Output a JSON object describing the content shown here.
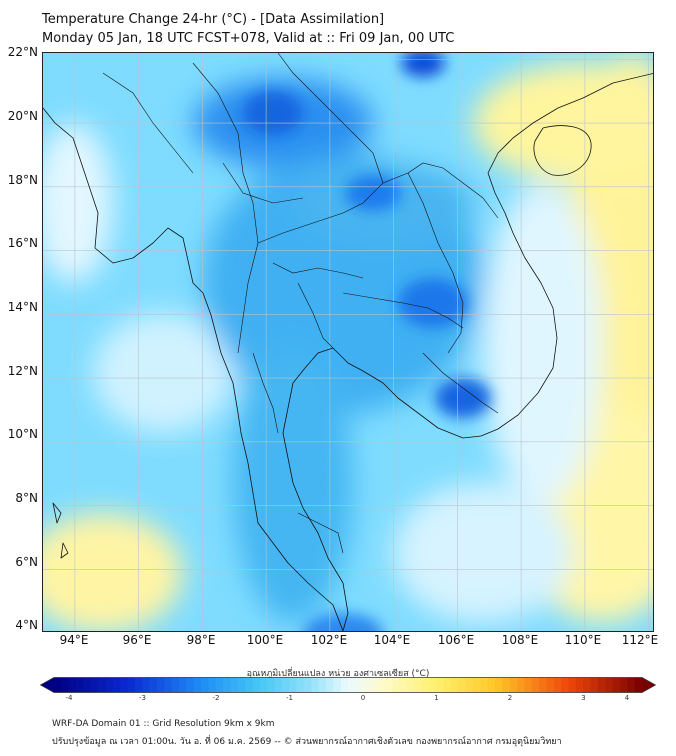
{
  "header": {
    "title_line1": "Temperature Change 24-hr (°C) - [Data Assimilation]",
    "title_line2": "Monday 05 Jan, 18 UTC FCST+078, Valid at :: Fri 09 Jan, 00 UTC"
  },
  "map": {
    "lat_labels": [
      "22°N",
      "20°N",
      "18°N",
      "16°N",
      "14°N",
      "12°N",
      "10°N",
      "8°N",
      "6°N",
      "4°N"
    ],
    "lat_values": [
      22,
      20,
      18,
      16,
      14,
      12,
      10,
      8,
      6,
      4
    ],
    "lon_labels": [
      "94°E",
      "96°E",
      "98°E",
      "100°E",
      "102°E",
      "104°E",
      "106°E",
      "108°E",
      "110°E",
      "112°E"
    ],
    "lon_values": [
      94,
      96,
      98,
      100,
      102,
      104,
      106,
      108,
      110,
      112
    ],
    "lon_range": [
      93,
      112.2
    ],
    "lat_range": [
      4,
      22.2
    ]
  },
  "colorbar": {
    "title": "อุณหภูมิเปลี่ยนแปลง หน่วย องศาเซลเซียส (°C)",
    "tick_labels": [
      "-4",
      "-3",
      "-2",
      "-1",
      "0",
      "1",
      "2",
      "3",
      "4"
    ],
    "tick_values": [
      -4,
      -3,
      -2,
      -1,
      0,
      1,
      2,
      3,
      4
    ],
    "range": [
      -4,
      4
    ]
  },
  "footer": {
    "line1": "WRF-DA Domain 01 :: Grid Resolution 9km x 9km",
    "line2": "ปรับปรุงข้อมูล ณ เวลา 01:00น. วัน อ. ที่ 06 ม.ค. 2569 -- © ส่วนพยากรณ์อากาศเชิงตัวเลข กองพยากรณ์อากาศ กรมอุตุนิยมวิทยา"
  },
  "colors": {
    "deep_blue": "#0a3fd6",
    "mid_blue": "#1e90ff",
    "light_blue": "#46b8f5",
    "cyan": "#7fdcff",
    "pale": "#d9f6ff",
    "yellow": "#fff07a",
    "border": "#111111"
  }
}
